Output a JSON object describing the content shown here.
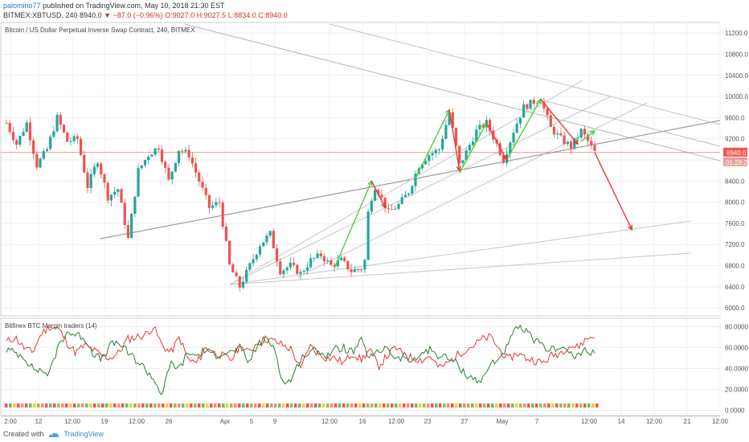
{
  "header": {
    "publisher": "palomino77",
    "published_text": "published on TradingView.com, May 10, 2018 21:30 EST",
    "symbol": "BITMEX:XBTUSD, 240",
    "last": "8940.0",
    "change": "−87.0 (−0.96%)",
    "open": "O:9027.0",
    "high": "H:9027.5",
    "low": "L:8834.0",
    "close": "C:8940.0"
  },
  "footer": {
    "created_with": "Created with",
    "brand": "TradingView"
  },
  "chart_data": [
    {
      "type": "candlestick",
      "title": "Bitcoin / US Dollar Perpetual Inverse Swap Contract, 240, BITMEX",
      "y_axis_ticks": [
        6000,
        6400,
        6800,
        7200,
        7600,
        8000,
        8400,
        8800,
        9200,
        9600,
        10000,
        10400,
        10800,
        11200
      ],
      "y_axis_labels": [
        "6000.0",
        "6400.0",
        "6800.0",
        "7200.0",
        "7600.0",
        "8000.0",
        "8400.0",
        "8800.0",
        "9200.0",
        "9600.0",
        "10000.0",
        "10400.0",
        "10800.0",
        "11200.0"
      ],
      "ylim": [
        5850,
        11400
      ],
      "last_price": "8940.0",
      "countdown": "01:29:22",
      "x_axis_labels": [
        "2:00",
        "12",
        "12:00",
        "19",
        "12:00",
        "26",
        "Apr",
        "5",
        "9",
        "12:00",
        "16",
        "12:00",
        "23",
        "27",
        "May",
        "7",
        "12:00",
        "14",
        "12:00",
        "21",
        "12:00"
      ],
      "price_path": [
        [
          0,
          9500
        ],
        [
          3,
          9100
        ],
        [
          6,
          9500
        ],
        [
          9,
          8700
        ],
        [
          12,
          9000
        ],
        [
          15,
          9600
        ],
        [
          18,
          9150
        ],
        [
          21,
          9200
        ],
        [
          24,
          8300
        ],
        [
          27,
          8800
        ],
        [
          30,
          8100
        ],
        [
          33,
          8250
        ],
        [
          36,
          7300
        ],
        [
          39,
          8600
        ],
        [
          42,
          8900
        ],
        [
          45,
          9050
        ],
        [
          48,
          8400
        ],
        [
          51,
          9000
        ],
        [
          54,
          8900
        ],
        [
          57,
          8400
        ],
        [
          60,
          7900
        ],
        [
          63,
          8000
        ],
        [
          66,
          6800
        ],
        [
          69,
          6400
        ],
        [
          72,
          6800
        ],
        [
          75,
          7200
        ],
        [
          78,
          7400
        ],
        [
          81,
          6700
        ],
        [
          84,
          6800
        ],
        [
          87,
          6650
        ],
        [
          90,
          6900
        ],
        [
          93,
          7000
        ],
        [
          96,
          6800
        ],
        [
          99,
          6900
        ],
        [
          102,
          6700
        ],
        [
          105,
          6750
        ],
        [
          106,
          6900
        ],
        [
          107,
          7800
        ],
        [
          108,
          8100
        ],
        [
          109,
          8300
        ],
        [
          110,
          8200
        ],
        [
          113,
          7800
        ],
        [
          116,
          7950
        ],
        [
          119,
          8200
        ],
        [
          122,
          8700
        ],
        [
          125,
          8900
        ],
        [
          128,
          9000
        ],
        [
          131,
          9700
        ],
        [
          134,
          8700
        ],
        [
          136,
          8950
        ],
        [
          139,
          9350
        ],
        [
          142,
          9500
        ],
        [
          145,
          9100
        ],
        [
          147,
          8800
        ],
        [
          150,
          9350
        ],
        [
          153,
          9800
        ],
        [
          156,
          9900
        ],
        [
          158,
          9950
        ],
        [
          161,
          9400
        ],
        [
          164,
          9200
        ],
        [
          167,
          9050
        ],
        [
          170,
          9350
        ],
        [
          172,
          9150
        ],
        [
          174,
          8940
        ]
      ],
      "forecast_arrow": {
        "from": [
          174,
          8940
        ],
        "to": [
          185,
          7480
        ]
      },
      "green_legs": [
        [
          [
            97,
            6750
          ],
          [
            108,
            8400
          ]
        ],
        [
          [
            121,
            8450
          ],
          [
            131,
            9750
          ]
        ],
        [
          [
            134,
            8550
          ],
          [
            142,
            9500
          ]
        ],
        [
          [
            148,
            8800
          ],
          [
            158,
            9950
          ]
        ],
        [
          [
            170,
            9150
          ],
          [
            174,
            9350
          ]
        ]
      ],
      "red_legs": [
        [
          [
            108,
            8400
          ],
          [
            112,
            7900
          ]
        ],
        [
          [
            131,
            9750
          ],
          [
            134,
            8600
          ]
        ],
        [
          [
            142,
            9500
          ],
          [
            148,
            8800
          ]
        ],
        [
          [
            158,
            9950
          ],
          [
            169,
            9100
          ]
        ]
      ]
    },
    {
      "type": "line",
      "title": "Bitfinex BTC Margin traders (14)",
      "y_axis_labels": [
        "0.0000",
        "20.0000",
        "40.0000",
        "60.0000",
        "80.0000"
      ],
      "y_axis_ticks": [
        0,
        20,
        40,
        60,
        80
      ],
      "ylim": [
        -5,
        88
      ],
      "series": [
        {
          "name": "",
          "color": "#e53935",
          "values": [
            65,
            70,
            60,
            55,
            73,
            80,
            78,
            65,
            55,
            62,
            58,
            52,
            50,
            55,
            68,
            70,
            72,
            80,
            62,
            55,
            70,
            48,
            45,
            60,
            55,
            52,
            48,
            62,
            55,
            65,
            68,
            66,
            62,
            58,
            38,
            62,
            55,
            50,
            50,
            45,
            55,
            48,
            58,
            42,
            52,
            60,
            52,
            50,
            48,
            52,
            40,
            45,
            52,
            58,
            62,
            68,
            70,
            58,
            48,
            55,
            50,
            48,
            45,
            52,
            55,
            62,
            60,
            68,
            72
          ]
        },
        {
          "name": "",
          "color": "#2e7d32",
          "values": [
            58,
            55,
            52,
            40,
            38,
            35,
            62,
            75,
            72,
            70,
            55,
            48,
            62,
            65,
            55,
            48,
            40,
            30,
            15,
            45,
            40,
            55,
            52,
            58,
            52,
            56,
            55,
            60,
            45,
            62,
            68,
            60,
            25,
            30,
            50,
            55,
            58,
            52,
            58,
            60,
            55,
            66,
            50,
            55,
            62,
            48,
            52,
            45,
            55,
            58,
            52,
            50,
            45,
            35,
            30,
            28,
            45,
            50,
            62,
            80,
            75,
            68,
            60,
            58,
            62,
            55,
            50,
            60,
            52
          ]
        }
      ]
    }
  ]
}
